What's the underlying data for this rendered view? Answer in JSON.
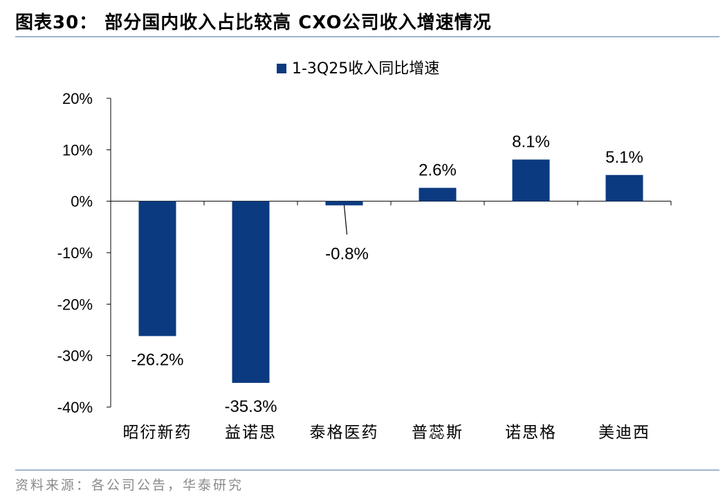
{
  "header": {
    "title": "图表30：  部分国内收入占比较高 CXO公司收入增速情况"
  },
  "footer": {
    "source": "资料来源：各公司公告，华泰研究"
  },
  "colors": {
    "bar": "#0b3a80",
    "axis": "#000000",
    "rule": "#9fb3cc",
    "source_text": "#8a8a8a"
  },
  "chart_data": {
    "type": "bar",
    "title": "",
    "xlabel": "",
    "ylabel": "",
    "categories": [
      "昭衍新药",
      "益诺思",
      "泰格医药",
      "普蕊斯",
      "诺思格",
      "美迪西"
    ],
    "series": [
      {
        "name": "1-3Q25收入同比增速",
        "values": [
          -26.2,
          -35.3,
          -0.8,
          2.6,
          8.1,
          5.1
        ],
        "labels": [
          "-26.2%",
          "-35.3%",
          "-0.8%",
          "2.6%",
          "8.1%",
          "5.1%"
        ]
      }
    ],
    "ylim": [
      -40,
      20
    ],
    "yticks": [
      20,
      10,
      0,
      -10,
      -20,
      -30,
      -40
    ],
    "ytick_labels": [
      "20%",
      "10%",
      "0%",
      "-10%",
      "-20%",
      "-30%",
      "-40%"
    ],
    "grid": false,
    "legend": "top-center",
    "annotations": [
      {
        "category": "泰格医药",
        "type": "leader-line",
        "text": "-0.8%"
      }
    ]
  }
}
